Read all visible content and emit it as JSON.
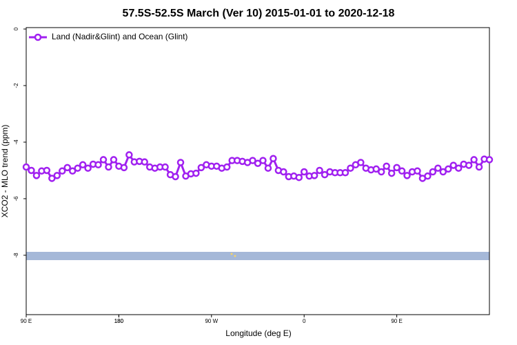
{
  "chart_data": {
    "type": "line",
    "title": "57.5S-52.5S March (Ver 10)   2015-01-01 to 2020-12-18",
    "x_label": "Longitude (deg E)",
    "y_label": "XCO2 - MLO trend (ppm)",
    "x": [
      90,
      95,
      100,
      105,
      110,
      115,
      120,
      125,
      130,
      135,
      140,
      145,
      150,
      155,
      160,
      165,
      170,
      175,
      180,
      185,
      190,
      195,
      200,
      205,
      210,
      215,
      220,
      225,
      230,
      235,
      240,
      245,
      250,
      255,
      260,
      265,
      270,
      275,
      280,
      285,
      290,
      295,
      300,
      305,
      310,
      315,
      320,
      325,
      330,
      335,
      340,
      345,
      350,
      355,
      360,
      365,
      370,
      375,
      380,
      385,
      390,
      395,
      400,
      405,
      410,
      415,
      420,
      425,
      430,
      435,
      440,
      445,
      450,
      455,
      460,
      465,
      470,
      475,
      480,
      485,
      490,
      495,
      500,
      505,
      510,
      515,
      520,
      525,
      530,
      535,
      540
    ],
    "series": [
      {
        "name": "Land (Nadir&Glint) and Ocean (Glint)",
        "color": "#a020f0",
        "values": [
          -4.88,
          -5.0,
          -5.18,
          -5.02,
          -5.0,
          -5.28,
          -5.18,
          -5.02,
          -4.9,
          -5.02,
          -4.92,
          -4.8,
          -4.92,
          -4.78,
          -4.8,
          -4.62,
          -4.88,
          -4.62,
          -4.85,
          -4.9,
          -4.45,
          -4.7,
          -4.68,
          -4.7,
          -4.88,
          -4.92,
          -4.88,
          -4.88,
          -5.15,
          -5.22,
          -4.72,
          -5.2,
          -5.12,
          -5.1,
          -4.9,
          -4.8,
          -4.85,
          -4.85,
          -4.92,
          -4.88,
          -4.65,
          -4.65,
          -4.68,
          -4.72,
          -4.65,
          -4.75,
          -4.65,
          -4.92,
          -4.58,
          -5.0,
          -5.05,
          -5.22,
          -5.2,
          -5.25,
          -5.05,
          -5.2,
          -5.18,
          -5.0,
          -5.15,
          -5.05,
          -5.08,
          -5.08,
          -5.08,
          -4.92,
          -4.8,
          -4.72,
          -4.92,
          -4.98,
          -4.95,
          -5.05,
          -4.85,
          -5.1,
          -4.9,
          -5.02,
          -5.18,
          -5.05,
          -5.02,
          -5.28,
          -5.2,
          -5.05,
          -4.92,
          -5.05,
          -4.95,
          -4.82,
          -4.92,
          -4.78,
          -4.82,
          -4.62,
          -4.88,
          -4.6,
          -4.62
        ]
      }
    ],
    "xlim": [
      90,
      540
    ],
    "xticks": [
      {
        "value": 90,
        "label": "90 E"
      },
      180,
      {
        "value": 270,
        "label": "90 W"
      },
      {
        "value": 360,
        "label": "0"
      },
      {
        "value": 450,
        "label": "90 E"
      },
      180.0001
    ],
    "ylim": [
      -10.1,
      0.05
    ],
    "yticks": [
      0,
      -2,
      -4,
      -6,
      -8
    ],
    "legend": "top-left"
  }
}
